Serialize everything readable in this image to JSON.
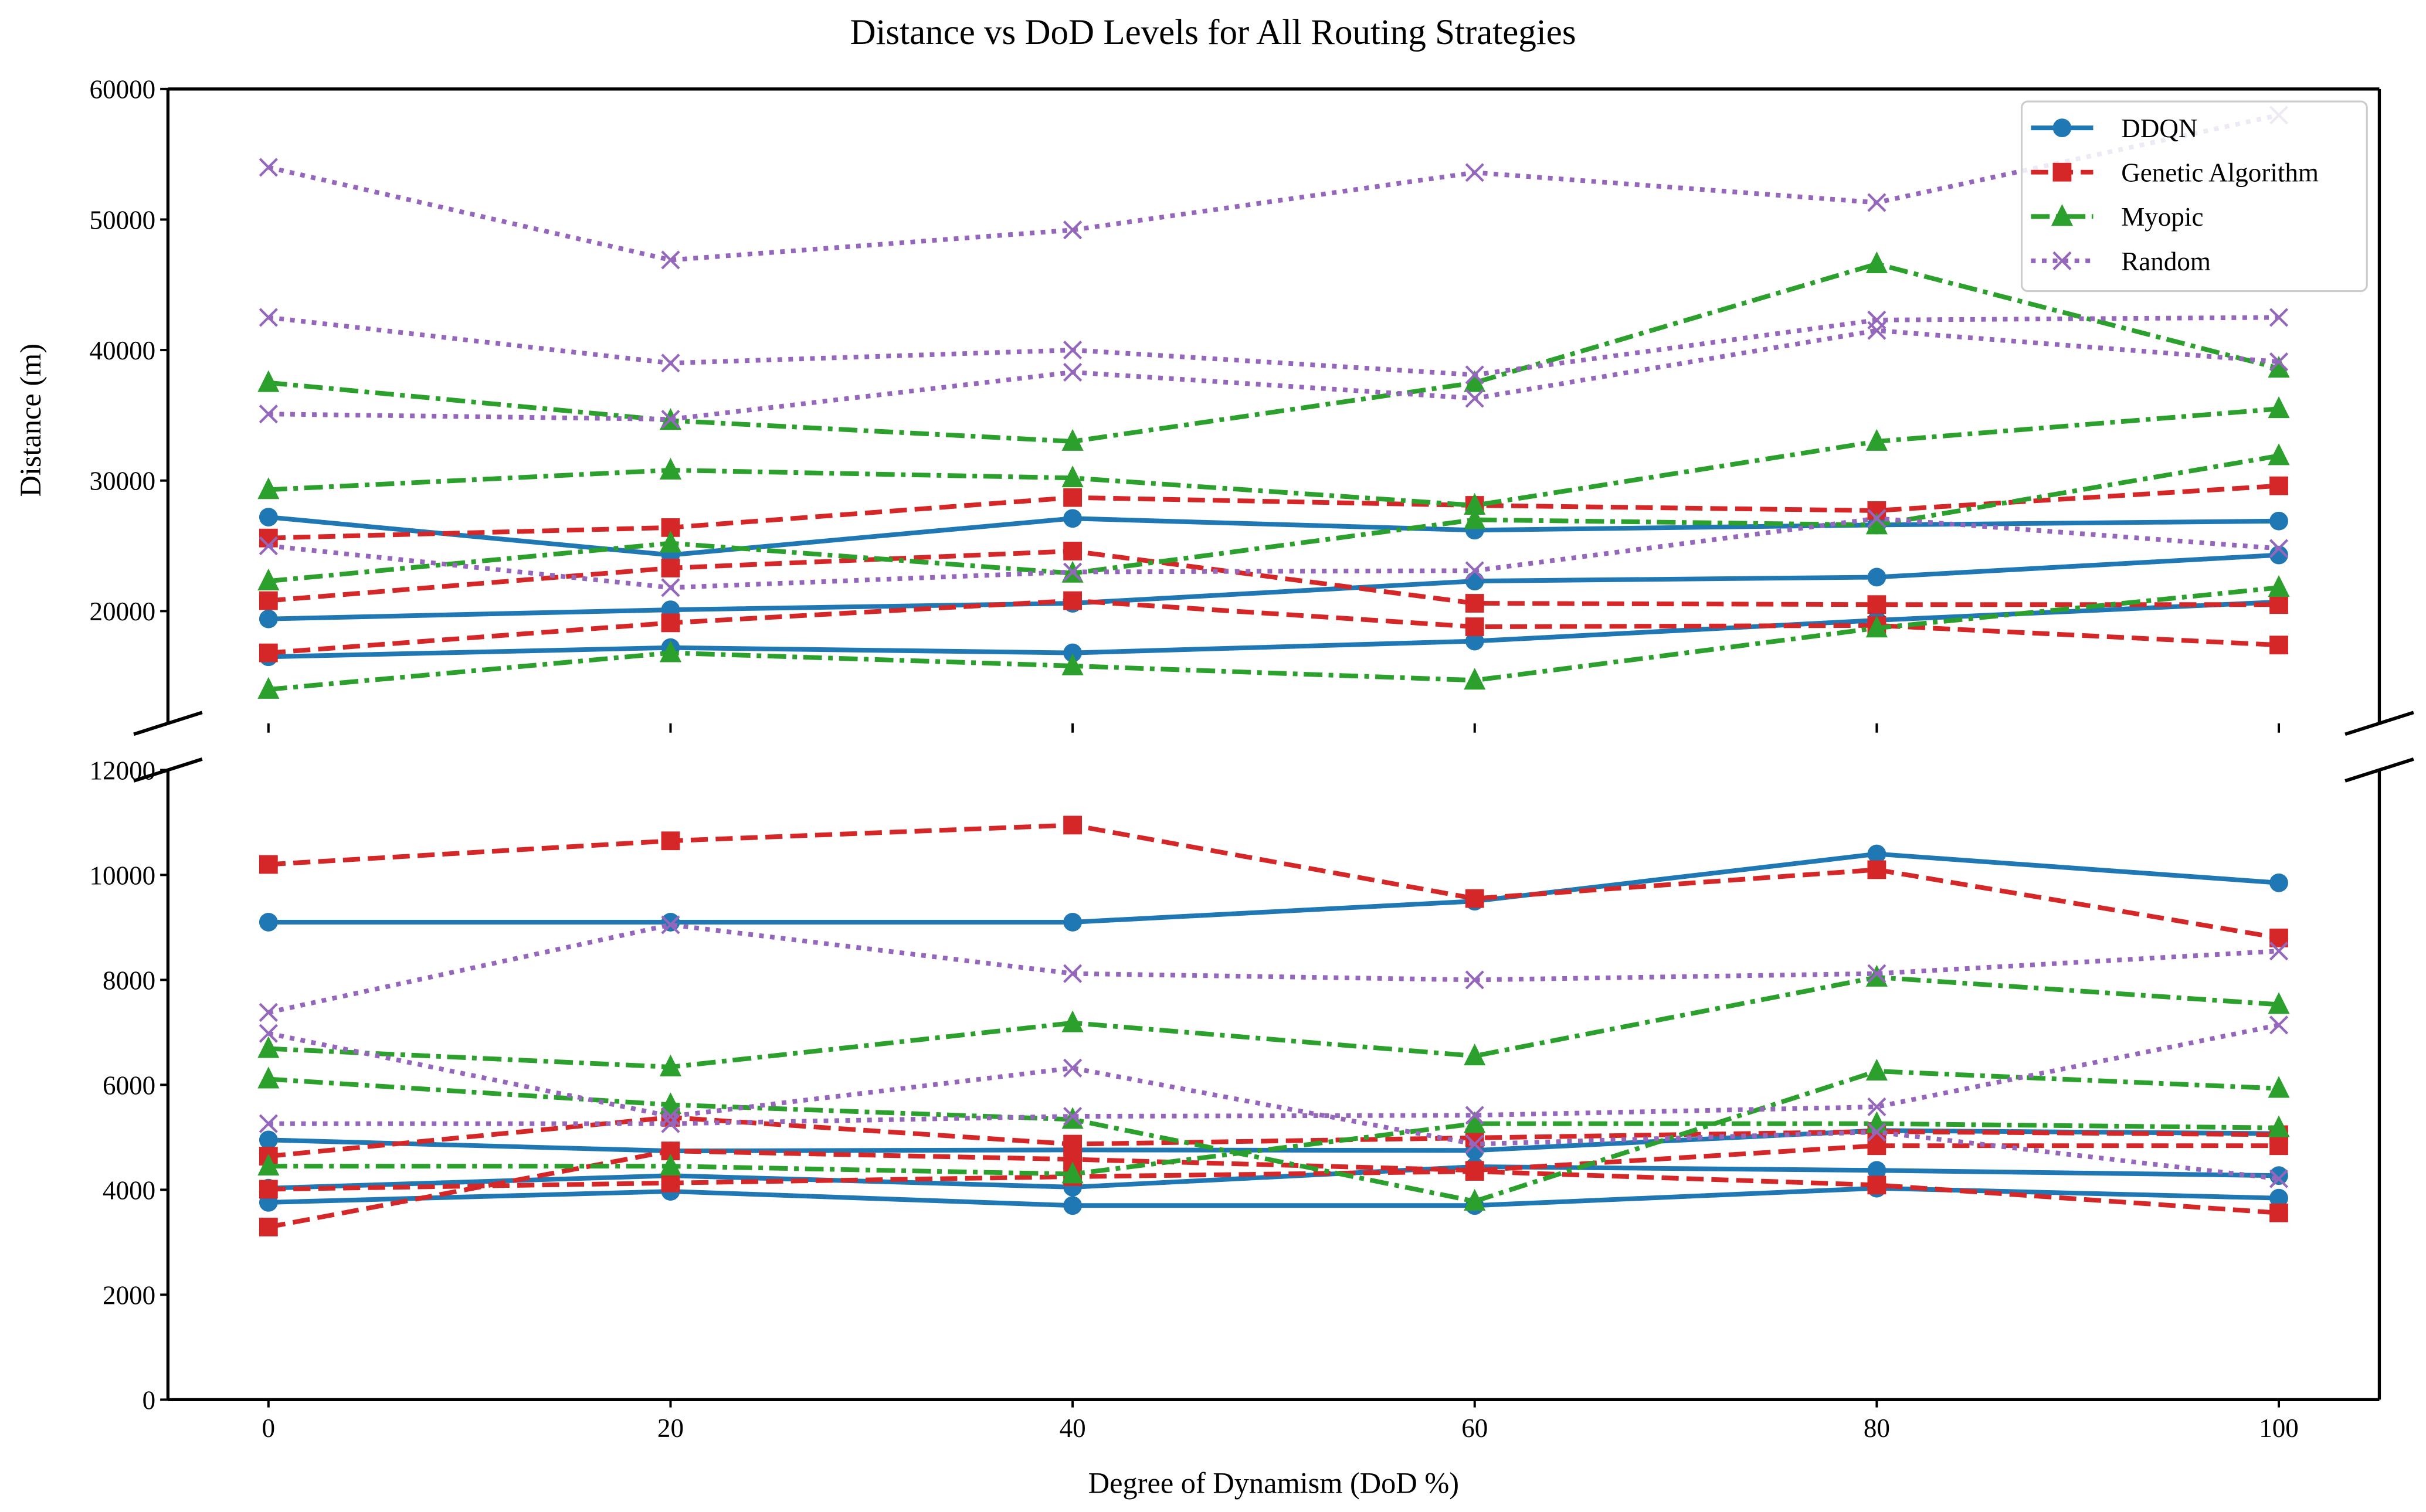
{
  "chart_data": {
    "type": "line",
    "title": "Distance vs DoD Levels for All Routing Strategies",
    "xlabel": "Degree of Dynamism (DoD %)",
    "ylabel": "Distance (m)",
    "x": [
      0,
      20,
      40,
      60,
      80,
      100
    ],
    "xlim": [
      -5,
      105
    ],
    "xticks": [
      "0",
      "20",
      "40",
      "60",
      "80",
      "100"
    ],
    "broken_y_axis": true,
    "panels": {
      "upper": {
        "ylim": [
          11400,
          60000
        ],
        "yticks": [
          20000,
          30000,
          40000,
          50000,
          60000
        ],
        "ytick_labels": [
          "20000",
          "30000",
          "40000",
          "50000",
          "60000"
        ]
      },
      "lower": {
        "ylim": [
          0,
          12000
        ],
        "yticks": [
          0,
          2000,
          4000,
          6000,
          8000,
          10000,
          12000
        ],
        "ytick_labels": [
          "0",
          "2000",
          "4000",
          "6000",
          "8000",
          "10000",
          "12000"
        ]
      }
    },
    "legend": {
      "placement": "top-right",
      "entries": [
        {
          "name": "DDQN",
          "color": "#1f77b4",
          "marker": "circle",
          "dash": "solid"
        },
        {
          "name": "Genetic Algorithm",
          "color": "#d62728",
          "marker": "square",
          "dash": "dashed"
        },
        {
          "name": "Myopic",
          "color": "#2ca02c",
          "marker": "triangle",
          "dash": "dashdot"
        },
        {
          "name": "Random",
          "color": "#9467bd",
          "marker": "x",
          "dash": "dotted"
        }
      ]
    },
    "series": [
      {
        "strategy": "DDQN",
        "panel": "upper",
        "values": [
          27200,
          24300,
          27100,
          26200,
          26600,
          26900
        ]
      },
      {
        "strategy": "DDQN",
        "panel": "upper",
        "values": [
          19400,
          20100,
          20600,
          22300,
          22600,
          24300
        ]
      },
      {
        "strategy": "DDQN",
        "panel": "upper",
        "values": [
          16500,
          17200,
          16800,
          17700,
          19300,
          20700
        ]
      },
      {
        "strategy": "DDQN",
        "panel": "lower",
        "values": [
          9100,
          9100,
          9100,
          9500,
          10400,
          9850
        ]
      },
      {
        "strategy": "DDQN",
        "panel": "lower",
        "values": [
          4950,
          4740,
          4760,
          4750,
          5130,
          5070
        ]
      },
      {
        "strategy": "DDQN",
        "panel": "lower",
        "values": [
          4030,
          4270,
          4050,
          4440,
          4370,
          4270
        ]
      },
      {
        "strategy": "DDQN",
        "panel": "lower",
        "values": [
          3760,
          3970,
          3700,
          3700,
          4030,
          3840
        ]
      },
      {
        "strategy": "Genetic Algorithm",
        "panel": "upper",
        "values": [
          25600,
          26400,
          28700,
          28100,
          27700,
          29600
        ]
      },
      {
        "strategy": "Genetic Algorithm",
        "panel": "upper",
        "values": [
          20800,
          23300,
          24600,
          20600,
          20500,
          20500
        ]
      },
      {
        "strategy": "Genetic Algorithm",
        "panel": "upper",
        "values": [
          16800,
          19100,
          20800,
          18800,
          18900,
          17400
        ]
      },
      {
        "strategy": "Genetic Algorithm",
        "panel": "lower",
        "values": [
          10200,
          10650,
          10950,
          9550,
          10100,
          8800
        ]
      },
      {
        "strategy": "Genetic Algorithm",
        "panel": "lower",
        "values": [
          4640,
          5380,
          4870,
          4990,
          5110,
          5050
        ]
      },
      {
        "strategy": "Genetic Algorithm",
        "panel": "lower",
        "values": [
          3290,
          4740,
          4580,
          4370,
          4840,
          4840
        ]
      },
      {
        "strategy": "Genetic Algorithm",
        "panel": "lower",
        "values": [
          4010,
          4130,
          4250,
          4350,
          4090,
          3560
        ]
      },
      {
        "strategy": "Myopic",
        "panel": "upper",
        "values": [
          37500,
          34600,
          33000,
          37500,
          46600,
          38600
        ]
      },
      {
        "strategy": "Myopic",
        "panel": "upper",
        "values": [
          29300,
          30800,
          30200,
          28100,
          33000,
          35500
        ]
      },
      {
        "strategy": "Myopic",
        "panel": "upper",
        "values": [
          22300,
          25200,
          22900,
          27000,
          26600,
          31900
        ]
      },
      {
        "strategy": "Myopic",
        "panel": "upper",
        "values": [
          14000,
          16800,
          15800,
          14700,
          18700,
          21800
        ]
      },
      {
        "strategy": "Myopic",
        "panel": "lower",
        "values": [
          6690,
          6340,
          7180,
          6550,
          8050,
          7530
        ]
      },
      {
        "strategy": "Myopic",
        "panel": "lower",
        "values": [
          6110,
          5620,
          5340,
          3780,
          6260,
          5930
        ]
      },
      {
        "strategy": "Myopic",
        "panel": "lower",
        "values": [
          4450,
          4450,
          4300,
          5260,
          5260,
          5180
        ]
      },
      {
        "strategy": "Random",
        "panel": "upper",
        "values": [
          54000,
          46900,
          49200,
          53600,
          51300,
          58000
        ]
      },
      {
        "strategy": "Random",
        "panel": "upper",
        "values": [
          42500,
          39000,
          40000,
          38100,
          42300,
          42500
        ]
      },
      {
        "strategy": "Random",
        "panel": "upper",
        "values": [
          35100,
          34700,
          38300,
          36300,
          41500,
          39100
        ]
      },
      {
        "strategy": "Random",
        "panel": "upper",
        "values": [
          25000,
          21800,
          23000,
          23100,
          27100,
          24800
        ]
      },
      {
        "strategy": "Random",
        "panel": "lower",
        "values": [
          7380,
          9050,
          8120,
          8000,
          8120,
          8550
        ]
      },
      {
        "strategy": "Random",
        "panel": "lower",
        "values": [
          6980,
          5400,
          6320,
          4870,
          5100,
          4210
        ]
      },
      {
        "strategy": "Random",
        "panel": "lower",
        "values": [
          5260,
          5260,
          5400,
          5420,
          5580,
          7140
        ]
      }
    ]
  }
}
